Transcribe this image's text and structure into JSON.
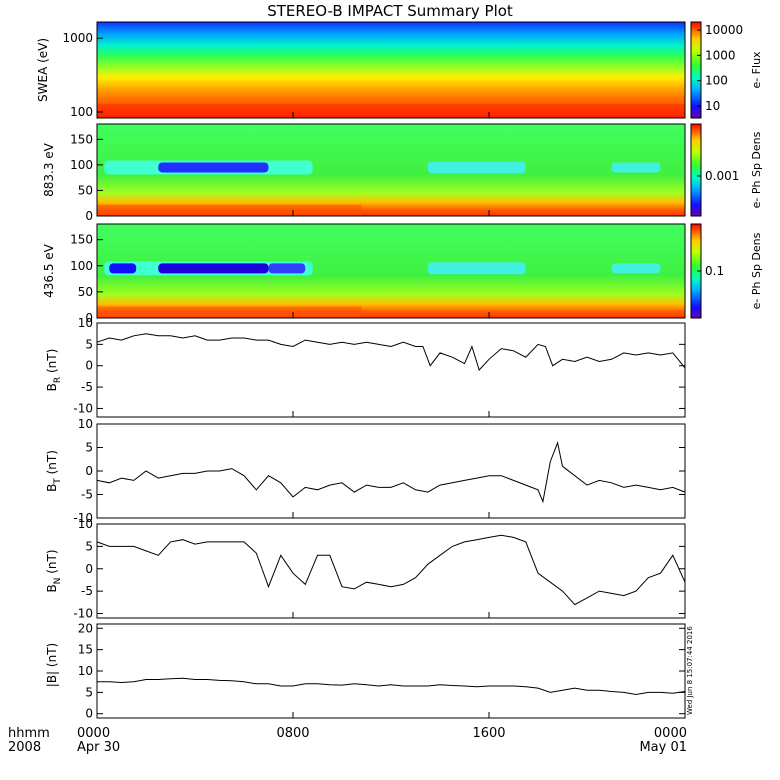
{
  "chart_data": {
    "type": "line",
    "title": "STEREO-B IMPACT Summary Plot",
    "time_axis": {
      "row1_label": "hhmm",
      "row2_label": "2008",
      "ticks": [
        {
          "hour": 0,
          "top": "0000",
          "bottom": "Apr 30"
        },
        {
          "hour": 8,
          "top": "0800",
          "bottom": ""
        },
        {
          "hour": 16,
          "top": "1600",
          "bottom": ""
        },
        {
          "hour": 24,
          "top": "0000",
          "bottom": "May 01"
        }
      ],
      "range_hours": [
        0,
        24
      ]
    },
    "timestamp": "Wed Jun 8 15:07:44 2016",
    "spectrograms": [
      {
        "name": "swea",
        "ylabel": "SWEA (eV)",
        "yscale": "log",
        "ylim": [
          100,
          2000
        ],
        "yticks": [
          "100",
          "1000"
        ],
        "colorbar": {
          "label": "e- Flux",
          "ticks": [
            "10000",
            "1000",
            "100",
            "10"
          ]
        }
      },
      {
        "name": "pad883",
        "ylabel": "883.3 eV",
        "ylim": [
          0,
          180
        ],
        "yticks": [
          "0",
          "50",
          "100",
          "150"
        ],
        "colorbar": {
          "label": "e- Ph Sp Dens",
          "ticks": [
            "0.001"
          ]
        }
      },
      {
        "name": "pad436",
        "ylabel": "436.5 eV",
        "ylim": [
          0,
          180
        ],
        "yticks": [
          "0",
          "50",
          "100",
          "150"
        ],
        "colorbar": {
          "label": "e- Ph Sp Dens",
          "ticks": [
            "0.1"
          ]
        }
      }
    ],
    "line_panels": [
      {
        "name": "br",
        "ylabel": "B",
        "ylabel_sub": "R",
        "ylabel_unit": " (nT)",
        "ylim": [
          -12,
          10
        ],
        "yticks": [
          "10",
          "5",
          "0",
          "-5",
          "-10"
        ],
        "series": [
          {
            "x": [
              0,
              0.5,
              1,
              1.5,
              2,
              2.5,
              3,
              3.5,
              4,
              4.5,
              5,
              5.5,
              6,
              6.5,
              7,
              7.5,
              8,
              8.5,
              9,
              9.5,
              10,
              10.5,
              11,
              11.5,
              12,
              12.5,
              13,
              13.3,
              13.6,
              14,
              14.5,
              15,
              15.3,
              15.6,
              16,
              16.5,
              17,
              17.5,
              18,
              18.3,
              18.6,
              19,
              19.5,
              20,
              20.5,
              21,
              21.5,
              22,
              22.5,
              23,
              23.5,
              24
            ],
            "y": [
              5.5,
              6.5,
              6,
              7,
              7.5,
              7,
              7,
              6.5,
              7,
              6,
              6,
              6.5,
              6.5,
              6,
              6,
              5,
              4.5,
              6,
              5.5,
              5,
              5.5,
              5,
              5.5,
              5,
              4.5,
              5.5,
              4.5,
              4.5,
              0,
              3,
              2,
              0.5,
              4.5,
              -1,
              1.5,
              4,
              3.5,
              2,
              5,
              4.5,
              0,
              1.5,
              1,
              2,
              1,
              1.5,
              3,
              2.5,
              3,
              2.5,
              3,
              -0.5
            ]
          }
        ]
      },
      {
        "name": "bt",
        "ylabel": "B",
        "ylabel_sub": "T",
        "ylabel_unit": " (nT)",
        "ylim": [
          -10,
          10
        ],
        "yticks": [
          "10",
          "5",
          "0",
          "-5",
          "-10"
        ],
        "series": [
          {
            "x": [
              0,
              0.5,
              1,
              1.5,
              2,
              2.5,
              3,
              3.5,
              4,
              4.5,
              5,
              5.5,
              6,
              6.5,
              7,
              7.5,
              8,
              8.5,
              9,
              9.5,
              10,
              10.5,
              11,
              11.5,
              12,
              12.5,
              13,
              13.5,
              14,
              14.5,
              15,
              15.5,
              16,
              16.5,
              17,
              17.5,
              18,
              18.2,
              18.5,
              18.8,
              19,
              19.5,
              20,
              20.5,
              21,
              21.5,
              22,
              22.5,
              23,
              23.5,
              24
            ],
            "y": [
              -2,
              -2.5,
              -1.5,
              -2,
              0,
              -1.5,
              -1,
              -0.5,
              -0.5,
              0,
              0,
              0.5,
              -1,
              -4,
              -1,
              -2.5,
              -5.5,
              -3.5,
              -4,
              -3,
              -2.5,
              -4.5,
              -3,
              -3.5,
              -3.5,
              -2.5,
              -4,
              -4.5,
              -3,
              -2.5,
              -2,
              -1.5,
              -1,
              -1,
              -2,
              -3,
              -4,
              -6.5,
              2,
              6,
              1,
              -1,
              -3,
              -2,
              -2.5,
              -3.5,
              -3,
              -3.5,
              -4,
              -3.5,
              -4.5
            ]
          }
        ]
      },
      {
        "name": "bn",
        "ylabel": "B",
        "ylabel_sub": "N",
        "ylabel_unit": " (nT)",
        "ylim": [
          -11,
          10
        ],
        "yticks": [
          "10",
          "5",
          "0",
          "-5",
          "-10"
        ],
        "series": [
          {
            "x": [
              0,
              0.5,
              1,
              1.5,
              2,
              2.5,
              3,
              3.5,
              4,
              4.5,
              5,
              5.5,
              6,
              6.5,
              7,
              7.5,
              8,
              8.5,
              9,
              9.5,
              10,
              10.5,
              11,
              11.5,
              12,
              12.5,
              13,
              13.5,
              14,
              14.5,
              15,
              15.5,
              16,
              16.5,
              17,
              17.5,
              18,
              18.5,
              19,
              19.5,
              20,
              20.5,
              21,
              21.5,
              22,
              22.5,
              23,
              23.5,
              24
            ],
            "y": [
              6,
              5,
              5,
              5,
              4,
              3,
              6,
              6.5,
              5.5,
              6,
              6,
              6,
              6,
              3.5,
              -4,
              3,
              -1,
              -3.5,
              3,
              3,
              -4,
              -4.5,
              -3,
              -3.5,
              -4,
              -3.5,
              -2,
              1,
              3,
              5,
              6,
              6.5,
              7,
              7.5,
              7,
              6,
              -1,
              -3,
              -5,
              -8,
              -6.5,
              -5,
              -5.5,
              -6,
              -5,
              -2,
              -1,
              3,
              -3
            ]
          }
        ]
      },
      {
        "name": "bmag",
        "ylabel": "|B|",
        "ylabel_sub": "",
        "ylabel_unit": " (nT)",
        "ylim": [
          -1,
          21
        ],
        "yticks": [
          "20",
          "15",
          "10",
          "5",
          "0"
        ],
        "series": [
          {
            "x": [
              0,
              0.5,
              1,
              1.5,
              2,
              2.5,
              3,
              3.5,
              4,
              4.5,
              5,
              5.5,
              6,
              6.5,
              7,
              7.5,
              8,
              8.5,
              9,
              9.5,
              10,
              10.5,
              11,
              11.5,
              12,
              12.5,
              13,
              13.5,
              14,
              14.5,
              15,
              15.5,
              16,
              16.5,
              17,
              17.5,
              18,
              18.5,
              19,
              19.5,
              20,
              20.5,
              21,
              21.5,
              22,
              22.5,
              23,
              23.5,
              24
            ],
            "y": [
              7.5,
              7.5,
              7.3,
              7.5,
              8,
              8,
              8.2,
              8.3,
              8,
              8,
              7.8,
              7.7,
              7.5,
              7,
              7,
              6.5,
              6.5,
              7,
              7,
              6.8,
              6.7,
              7,
              6.8,
              6.5,
              6.8,
              6.5,
              6.5,
              6.5,
              6.8,
              6.6,
              6.5,
              6.3,
              6.5,
              6.5,
              6.5,
              6.3,
              6,
              5,
              5.5,
              6,
              5.5,
              5.5,
              5.2,
              5,
              4.5,
              5,
              5,
              4.8,
              5.2
            ]
          }
        ]
      }
    ]
  }
}
